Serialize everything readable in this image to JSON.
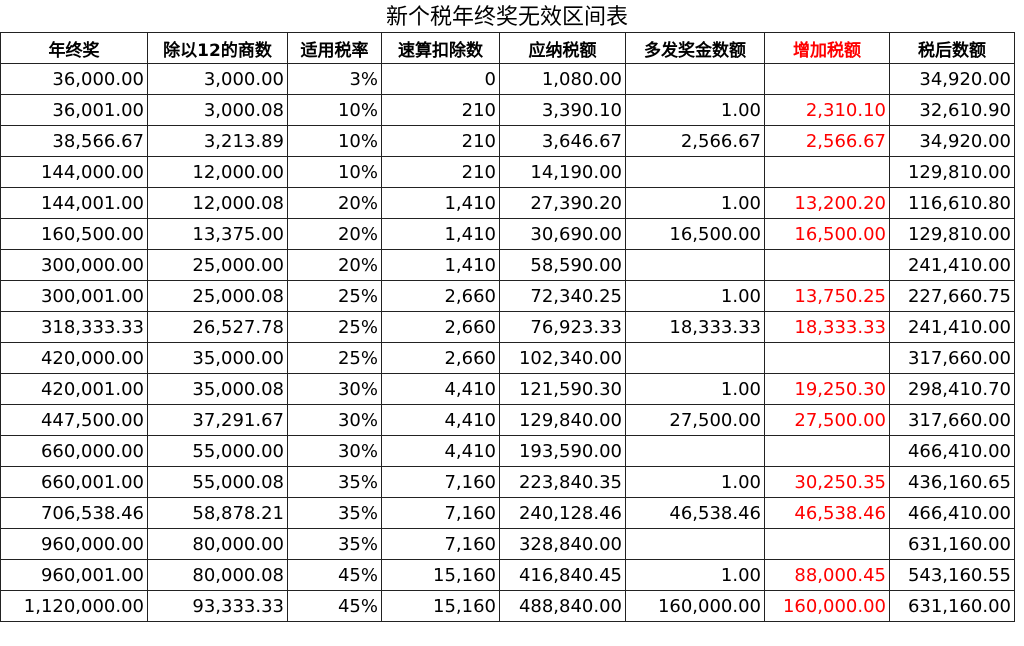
{
  "title": "新个税年终奖无效区间表",
  "table": {
    "header": [
      "年终奖",
      "除以12的商数",
      "适用税率",
      "速算扣除数",
      "应纳税额",
      "多发奖金数额",
      "增加税额",
      "税后数额"
    ],
    "rows": [
      [
        "36,000.00",
        "3,000.00",
        "3%",
        "0",
        "1,080.00",
        null,
        null,
        "34,920.00"
      ],
      [
        "36,001.00",
        "3,000.08",
        "10%",
        "210",
        "3,390.10",
        "1.00",
        "2,310.10",
        "32,610.90"
      ],
      [
        "38,566.67",
        "3,213.89",
        "10%",
        "210",
        "3,646.67",
        "2,566.67",
        "2,566.67",
        "34,920.00"
      ],
      [
        "144,000.00",
        "12,000.00",
        "10%",
        "210",
        "14,190.00",
        null,
        null,
        "129,810.00"
      ],
      [
        "144,001.00",
        "12,000.08",
        "20%",
        "1,410",
        "27,390.20",
        "1.00",
        "13,200.20",
        "116,610.80"
      ],
      [
        "160,500.00",
        "13,375.00",
        "20%",
        "1,410",
        "30,690.00",
        "16,500.00",
        "16,500.00",
        "129,810.00"
      ],
      [
        "300,000.00",
        "25,000.00",
        "20%",
        "1,410",
        "58,590.00",
        null,
        null,
        "241,410.00"
      ],
      [
        "300,001.00",
        "25,000.08",
        "25%",
        "2,660",
        "72,340.25",
        "1.00",
        "13,750.25",
        "227,660.75"
      ],
      [
        "318,333.33",
        "26,527.78",
        "25%",
        "2,660",
        "76,923.33",
        "18,333.33",
        "18,333.33",
        "241,410.00"
      ],
      [
        "420,000.00",
        "35,000.00",
        "25%",
        "2,660",
        "102,340.00",
        null,
        null,
        "317,660.00"
      ],
      [
        "420,001.00",
        "35,000.08",
        "30%",
        "4,410",
        "121,590.30",
        "1.00",
        "19,250.30",
        "298,410.70"
      ],
      [
        "447,500.00",
        "37,291.67",
        "30%",
        "4,410",
        "129,840.00",
        "27,500.00",
        "27,500.00",
        "317,660.00"
      ],
      [
        "660,000.00",
        "55,000.00",
        "30%",
        "4,410",
        "193,590.00",
        null,
        null,
        "466,410.00"
      ],
      [
        "660,001.00",
        "55,000.08",
        "35%",
        "7,160",
        "223,840.35",
        "1.00",
        "30,250.35",
        "436,160.65"
      ],
      [
        "706,538.46",
        "58,878.21",
        "35%",
        "7,160",
        "240,128.46",
        "46,538.46",
        "46,538.46",
        "466,410.00"
      ],
      [
        "960,000.00",
        "80,000.00",
        "35%",
        "7,160",
        "328,840.00",
        null,
        null,
        "631,160.00"
      ],
      [
        "960,001.00",
        "80,000.08",
        "45%",
        "15,160",
        "416,840.45",
        "1.00",
        "88,000.45",
        "543,160.55"
      ],
      [
        "1,120,000.00",
        "93,333.33",
        "45%",
        "15,160",
        "488,840.00",
        "160,000.00",
        "160,000.00",
        "631,160.00"
      ]
    ]
  }
}
